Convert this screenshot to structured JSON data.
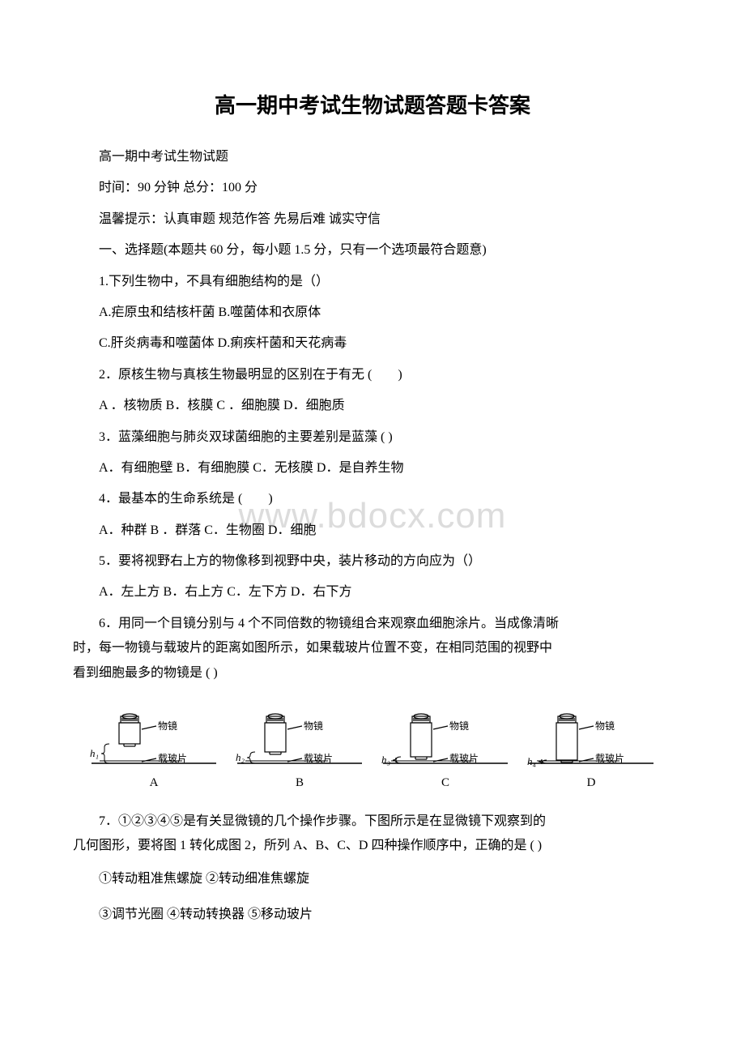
{
  "title": "高一期中考试生物试题答题卡答案",
  "header_lines": [
    "高一期中考试生物试题",
    " 时间：90 分钟   总分：100 分",
    "温馨提示：认真审题 规范作答 先易后难 诚实守信",
    "一、选择题(本题共 60 分，每小题 1.5 分，只有一个选项最符合题意)"
  ],
  "q1": {
    "stem": "1.下列生物中，不具有细胞结构的是（）",
    "opt1": "A.疟原虫和结核杆菌 B.噬菌体和衣原体",
    "opt2": "C.肝炎病毒和噬菌体 D.痢疾杆菌和天花病毒"
  },
  "q2": {
    "stem": "2．原核生物与真核生物最明显的区别在于有无 (　　)",
    "opts": "A ．核物质 B．核膜 C ．细胞膜 D．细胞质"
  },
  "q3": {
    "stem": "3．蓝藻细胞与肺炎双球菌细胞的主要差别是蓝藻 ( )",
    "opts": "A．有细胞壁 B．有细胞膜 C．无核膜 D．是自养生物"
  },
  "q4": {
    "stem": "4．最基本的生命系统是 (　　)",
    "opts": "A．种群 B ．群落 C．生物圈 D．细胞"
  },
  "q5": {
    "stem": "5．要将视野右上方的物像移到视野中央，装片移动的方向应为（）",
    "opts": "A．左上方 B．右上方 C．左下方 D．右下方"
  },
  "q6": {
    "l1": "6．用同一个目镜分别与 4 个不同倍数的物镜组合来观察血细胞涂片。当成像清晰",
    "l2": "时，每一物镜与载玻片的距离如图所示，如果载玻片位置不变，在相同范围的视野中",
    "l3": "看到细胞最多的物镜是 ( )"
  },
  "diagrams": {
    "label_lens": "物镜",
    "label_slide": "载玻片",
    "items": [
      {
        "h": "h₁",
        "letter": "A",
        "lens_h": 34,
        "gap": 24
      },
      {
        "h": "h₂",
        "letter": "B",
        "lens_h": 44,
        "gap": 14
      },
      {
        "h": "h₃",
        "letter": "C",
        "lens_h": 50,
        "gap": 8
      },
      {
        "h": "h₄",
        "letter": "D",
        "lens_h": 54,
        "gap": 4
      }
    ]
  },
  "q7": {
    "l1": "7．①②③④⑤是有关显微镜的几个操作步骤。下图所示是在显微镜下观察到的",
    "l2": "几何图形，要将图 1 转化成图 2，所列 A、B、C、D 四种操作顺序中，正确的是 ( )",
    "s1": "①转动粗准焦螺旋 ②转动细准焦螺旋",
    "s2": "③调节光圈 ④转动转换器 ⑤移动玻片"
  },
  "watermark": "www.bdocx.com",
  "colors": {
    "text": "#000000",
    "bg": "#ffffff",
    "watermark": "#dcdcdc",
    "stroke": "#000000"
  }
}
